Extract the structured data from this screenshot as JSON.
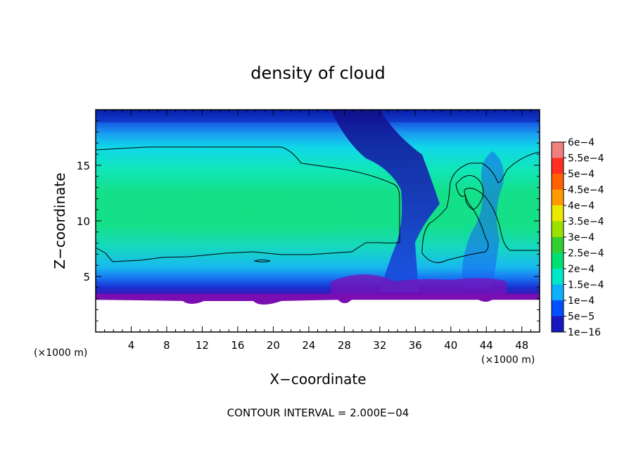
{
  "chart_data": {
    "type": "heatmap",
    "title": "density of cloud",
    "xlabel": "X−coordinate",
    "ylabel": "Z−coordinate",
    "x_unit_left": "(×1000 m)",
    "x_unit_right": "(×1000 m)",
    "footer": "CONTOUR INTERVAL = 2.000E−04",
    "xlim": [
      0,
      50
    ],
    "ylim": [
      0,
      20
    ],
    "x_ticks": [
      "4",
      "8",
      "12",
      "16",
      "20",
      "24",
      "28",
      "32",
      "36",
      "40",
      "44",
      "48"
    ],
    "y_ticks": [
      "5",
      "10",
      "15"
    ],
    "colorbar": {
      "labels": [
        "6e−4",
        "5.5e−4",
        "5e−4",
        "4.5e−4",
        "4e−4",
        "3.5e−4",
        "3e−4",
        "2.5e−4",
        "2e−4",
        "1.5e−4",
        "1e−4",
        "5e−5",
        "1e−16"
      ],
      "colors": [
        "#f08080",
        "#ff3020",
        "#ff6000",
        "#ff9a00",
        "#e8e800",
        "#9ae000",
        "#30d030",
        "#00e070",
        "#00e8c8",
        "#10b0ff",
        "#0050ff",
        "#1818c0",
        "#7a0eb0"
      ]
    },
    "contour_level": "2e−4",
    "cloud_base_z": 3
  }
}
